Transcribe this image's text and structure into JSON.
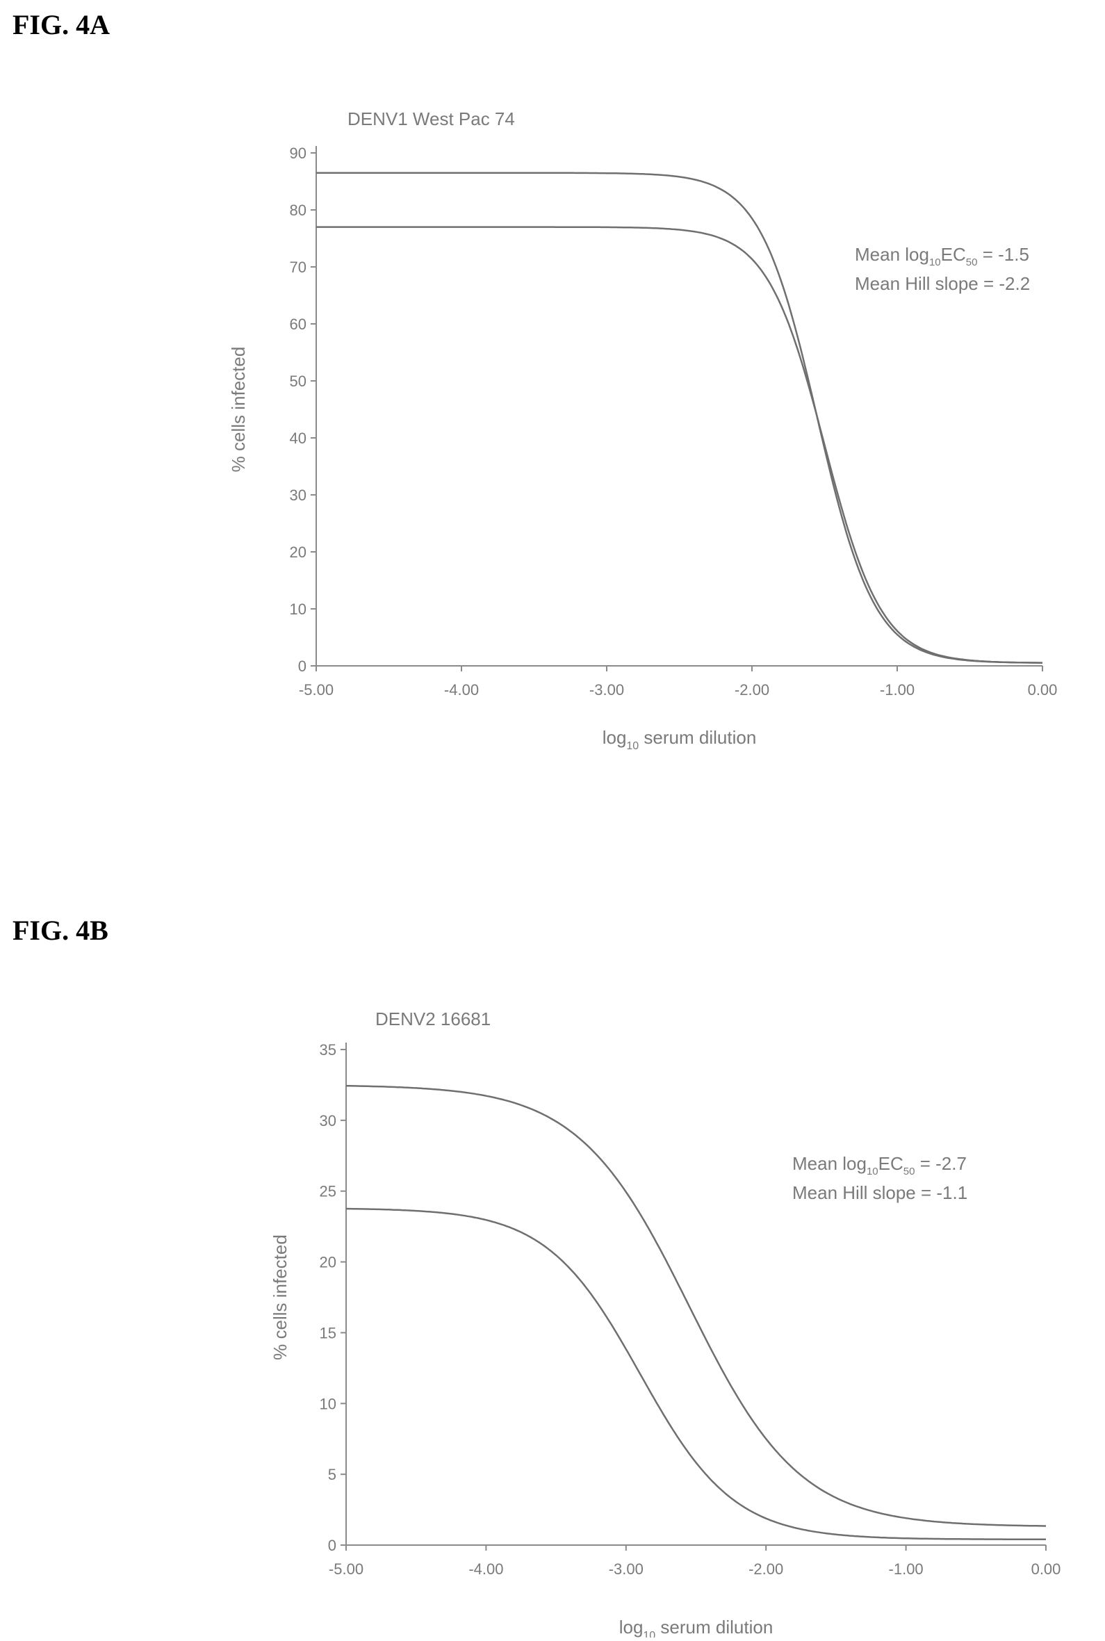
{
  "figures": [
    {
      "label": "FIG. 4A"
    },
    {
      "label": "FIG. 4B"
    }
  ],
  "colors": {
    "axis": "#8a8a8a",
    "curve": "#6f6f6f",
    "text": "#7a7a7a"
  },
  "chart_data": [
    {
      "type": "line",
      "title": "DENV1 West Pac 74",
      "xlabel": "log10 serum dilution",
      "xlabel_base": "log",
      "xlabel_sub": "10",
      "xlabel_rest": " serum dilution",
      "ylabel": "% cells infected",
      "xlim": [
        -5.0,
        0.0
      ],
      "ylim": [
        0,
        90
      ],
      "xticks": [
        -5.0,
        -4.0,
        -3.0,
        -2.0,
        -1.0,
        0.0
      ],
      "xtick_labels": [
        "-5.00",
        "-4.00",
        "-3.00",
        "-2.00",
        "-1.00",
        "0.00"
      ],
      "yticks": [
        0,
        10,
        20,
        30,
        40,
        50,
        60,
        70,
        80,
        90
      ],
      "ytick_labels": [
        "0",
        "10",
        "20",
        "30",
        "40",
        "50",
        "60",
        "70",
        "80",
        "90"
      ],
      "annotations": [
        {
          "prefix": "Mean log",
          "sub1": "10",
          "mid": "EC",
          "sub2": "50",
          "suffix": " = -1.5"
        },
        {
          "prefix": "Mean Hill slope = -2.2",
          "sub1": "",
          "mid": "",
          "sub2": "",
          "suffix": ""
        }
      ],
      "series": [
        {
          "top": 86.5,
          "bottom": 0.5,
          "logec50": -1.55,
          "hill": 2.2
        },
        {
          "top": 77.0,
          "bottom": 0.5,
          "logec50": -1.5,
          "hill": 2.2
        }
      ]
    },
    {
      "type": "line",
      "title": "DENV2 16681",
      "xlabel": "log10 serum dilution",
      "xlabel_base": "log",
      "xlabel_sub": "10",
      "xlabel_rest": " serum dilution",
      "ylabel": "% cells infected",
      "xlim": [
        -5.0,
        0.0
      ],
      "ylim": [
        0,
        35
      ],
      "xticks": [
        -5.0,
        -4.0,
        -3.0,
        -2.0,
        -1.0,
        0.0
      ],
      "xtick_labels": [
        "-5.00",
        "-4.00",
        "-3.00",
        "-2.00",
        "-1.00",
        "0.00"
      ],
      "yticks": [
        0,
        5,
        10,
        15,
        20,
        25,
        30,
        35
      ],
      "ytick_labels": [
        "0",
        "5",
        "10",
        "15",
        "20",
        "25",
        "30",
        "35"
      ],
      "annotations": [
        {
          "prefix": "Mean log",
          "sub1": "10",
          "mid": "EC",
          "sub2": "50",
          "suffix": " = -2.7"
        },
        {
          "prefix": "Mean Hill slope = -1.1",
          "sub1": "",
          "mid": "",
          "sub2": "",
          "suffix": ""
        }
      ],
      "series": [
        {
          "top": 32.5,
          "bottom": 1.3,
          "logec50": -2.55,
          "hill": 1.1
        },
        {
          "top": 23.8,
          "bottom": 0.4,
          "logec50": -2.9,
          "hill": 1.3
        }
      ]
    }
  ]
}
